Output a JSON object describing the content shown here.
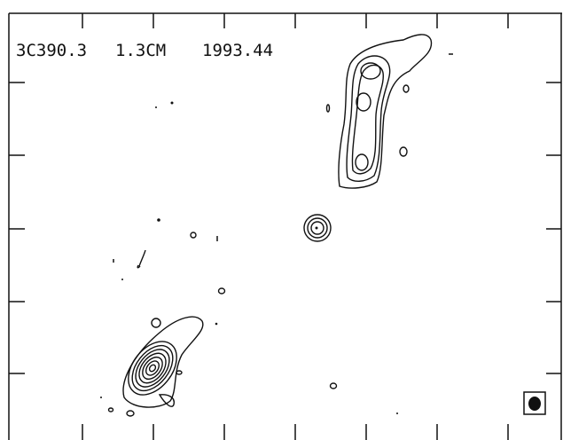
{
  "label": {
    "source": "3C390.3",
    "band": "1.3CM",
    "epoch": "1993.44"
  }
}
